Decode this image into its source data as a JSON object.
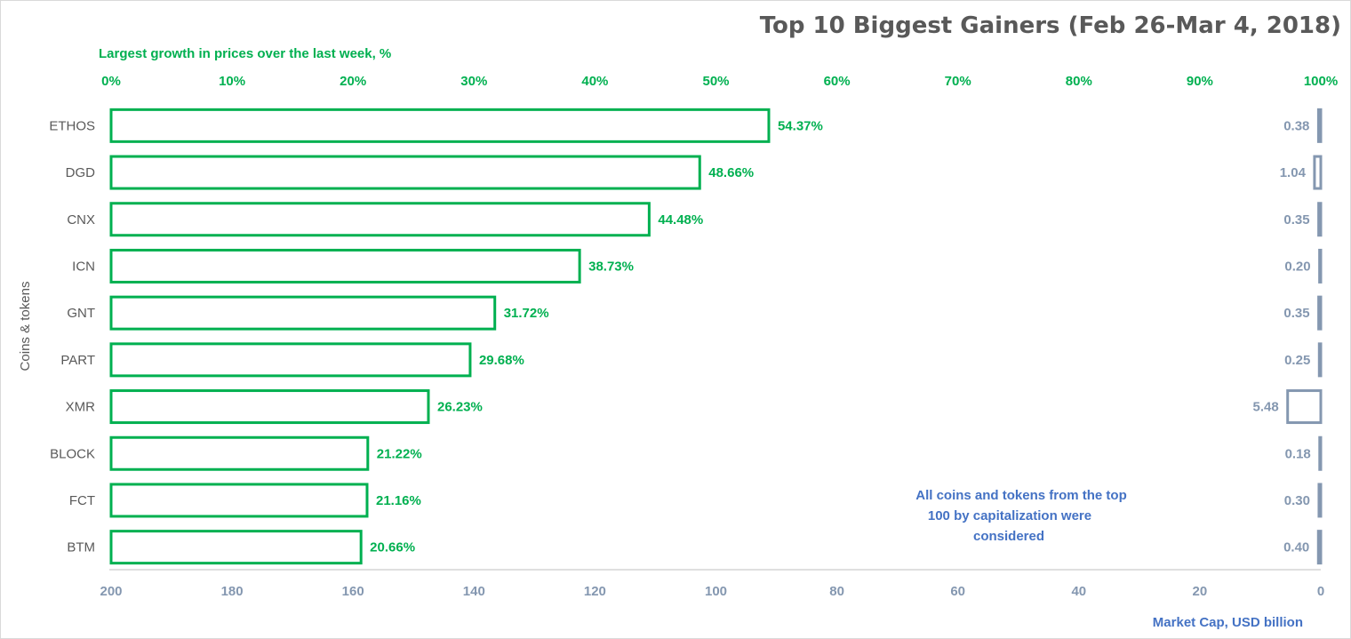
{
  "chart_data": {
    "type": "bar",
    "orientation": "horizontal",
    "title": "Top 10 Biggest Gainers (Feb 26-Mar 4, 2018)",
    "ylabel": "Coins & tokens",
    "categories": [
      "ETHOS",
      "DGD",
      "CNX",
      "ICN",
      "GNT",
      "PART",
      "XMR",
      "BLOCK",
      "FCT",
      "BTM"
    ],
    "series": [
      {
        "name": "Largest growth in prices over the last week, %",
        "axis": "top",
        "values": [
          54.37,
          48.66,
          44.48,
          38.73,
          31.72,
          29.68,
          26.23,
          21.22,
          21.16,
          20.66
        ],
        "labels": [
          "54.37%",
          "48.66%",
          "44.48%",
          "38.73%",
          "31.72%",
          "29.68%",
          "26.23%",
          "21.22%",
          "21.16%",
          "20.66%"
        ],
        "color": "#00b050"
      },
      {
        "name": "Market Cap,  USD billion",
        "axis": "bottom",
        "direction": "reversed",
        "values": [
          0.38,
          1.04,
          0.35,
          0.2,
          0.35,
          0.25,
          5.48,
          0.18,
          0.3,
          0.4
        ],
        "labels": [
          "0.38",
          "1.04",
          "0.35",
          "0.20",
          "0.35",
          "0.25",
          "5.48",
          "0.18",
          "0.30",
          "0.40"
        ],
        "color": "#8497b0"
      }
    ],
    "top_axis": {
      "title": "Largest growth in prices over the last week, %",
      "range": [
        0,
        100
      ],
      "ticks": [
        "0%",
        "10%",
        "20%",
        "30%",
        "40%",
        "50%",
        "60%",
        "70%",
        "80%",
        "90%",
        "100%"
      ]
    },
    "bottom_axis": {
      "title": "Market Cap,  USD billion",
      "range": [
        200,
        0
      ],
      "ticks": [
        "200",
        "180",
        "160",
        "140",
        "120",
        "100",
        "80",
        "60",
        "40",
        "20",
        "0"
      ]
    },
    "annotation": [
      "All coins and tokens from the top",
      "100 by capitalization were",
      "considered"
    ],
    "grid": false
  }
}
